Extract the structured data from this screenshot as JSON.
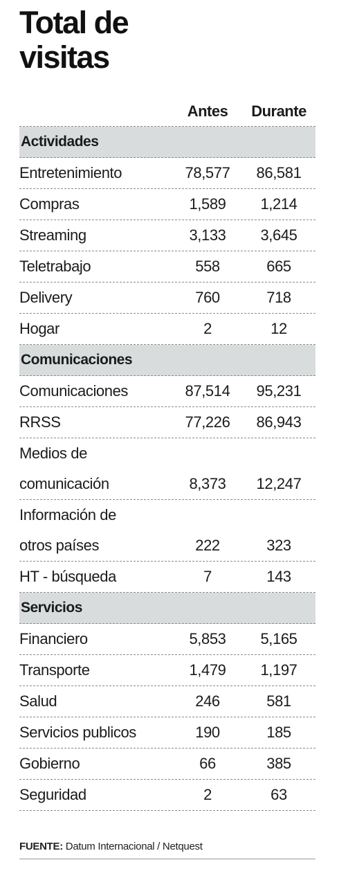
{
  "title": {
    "line1": "Total de",
    "line2": "visitas"
  },
  "columns": {
    "antes": "Antes",
    "durante": "Durante"
  },
  "sections": [
    {
      "name": "Actividades",
      "rows": [
        {
          "label": [
            "Entretenimiento"
          ],
          "antes": "78,577",
          "durante": "86,581"
        },
        {
          "label": [
            "Compras"
          ],
          "antes": "1,589",
          "durante": "1,214"
        },
        {
          "label": [
            "Streaming"
          ],
          "antes": "3,133",
          "durante": "3,645"
        },
        {
          "label": [
            "Teletrabajo"
          ],
          "antes": "558",
          "durante": "665"
        },
        {
          "label": [
            "Delivery"
          ],
          "antes": "760",
          "durante": "718"
        },
        {
          "label": [
            "Hogar"
          ],
          "antes": "2",
          "durante": "12"
        }
      ]
    },
    {
      "name": "Comunicaciones",
      "rows": [
        {
          "label": [
            "Comunicaciones"
          ],
          "antes": "87,514",
          "durante": "95,231"
        },
        {
          "label": [
            "RRSS"
          ],
          "antes": "77,226",
          "durante": "86,943"
        },
        {
          "label": [
            "Medios de",
            "comunicación"
          ],
          "antes": "8,373",
          "durante": "12,247"
        },
        {
          "label": [
            "Información de",
            "otros países"
          ],
          "antes": "222",
          "durante": "323"
        },
        {
          "label": [
            "HT - búsqueda"
          ],
          "antes": "7",
          "durante": "143"
        }
      ]
    },
    {
      "name": "Servicios",
      "rows": [
        {
          "label": [
            "Financiero"
          ],
          "antes": "5,853",
          "durante": "5,165"
        },
        {
          "label": [
            "Transporte"
          ],
          "antes": "1,479",
          "durante": "1,197"
        },
        {
          "label": [
            "Salud"
          ],
          "antes": "246",
          "durante": "581"
        },
        {
          "label": [
            "Servicios publicos"
          ],
          "antes": "190",
          "durante": "185"
        },
        {
          "label": [
            "Gobierno"
          ],
          "antes": "66",
          "durante": "385"
        },
        {
          "label": [
            "Seguridad"
          ],
          "antes": "2",
          "durante": "63"
        }
      ]
    }
  ],
  "source": {
    "label": "FUENTE:",
    "text": "Datum Internacional / Netquest"
  }
}
